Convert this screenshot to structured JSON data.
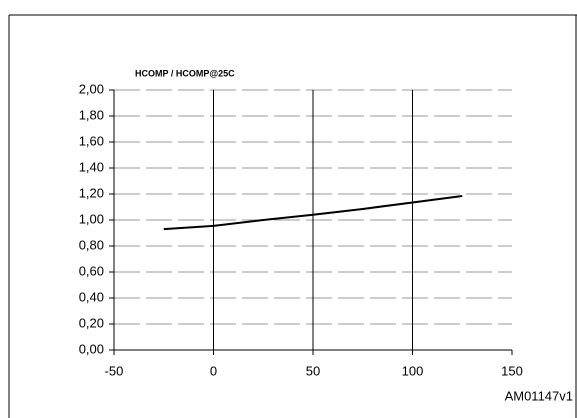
{
  "chart_data": {
    "type": "line",
    "title": "HCOMP / HCOMP@25C",
    "x": [
      -25,
      0,
      25,
      50,
      75,
      100,
      125
    ],
    "values": [
      0.93,
      0.955,
      1.0,
      1.04,
      1.085,
      1.135,
      1.185
    ],
    "color": "#000000",
    "xlim": [
      -50,
      150
    ],
    "xticks": [
      -50,
      0,
      50,
      100,
      150
    ],
    "ylim": [
      0,
      2
    ],
    "yticks": [
      {
        "value": 0,
        "label": "0,00"
      },
      {
        "value": 0.2,
        "label": "0,20"
      },
      {
        "value": 0.4,
        "label": "0,40"
      },
      {
        "value": 0.6,
        "label": "0,60"
      },
      {
        "value": 0.8,
        "label": "0,80"
      },
      {
        "value": 1,
        "label": "1,00"
      },
      {
        "value": 1.2,
        "label": "1,20"
      },
      {
        "value": 1.4,
        "label": "1,40"
      },
      {
        "value": 1.6,
        "label": "1,60"
      },
      {
        "value": 1.8,
        "label": "1,80"
      },
      {
        "value": 2,
        "label": "2,00"
      }
    ],
    "grid": true,
    "figure_code": "AM01147v1"
  }
}
